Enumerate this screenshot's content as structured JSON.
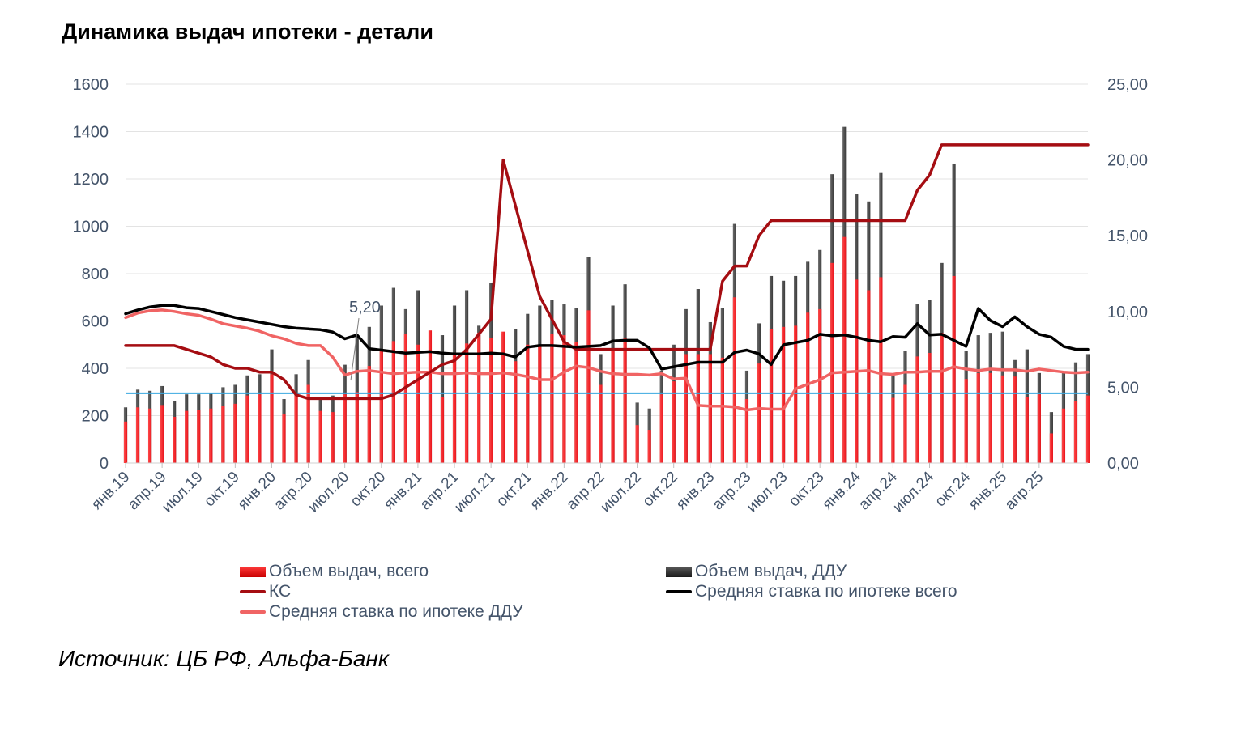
{
  "title": "Динамика выдач ипотеки - детали",
  "source": "Источник: ЦБ РФ, Альфа-Банк",
  "annotation": "5,20",
  "colors": {
    "total_bar": "#e8141c",
    "ddu_bar": "#3a3a3a",
    "ks": "#a50d12",
    "avg_total": "#000000",
    "avg_ddu": "#f06464",
    "ref_line": "#3aa8e0"
  },
  "legend": [
    {
      "key": "total",
      "label": "Объем выдач, всего",
      "kind": "bar",
      "color": "#e8141c"
    },
    {
      "key": "ddu",
      "label": "Объем выдач, ДДУ",
      "kind": "bar",
      "color": "#3a3a3a"
    },
    {
      "key": "ks",
      "label": "КС",
      "kind": "line",
      "color": "#a50d12"
    },
    {
      "key": "avg_total",
      "label": "Средняя ставка по ипотеке всего",
      "kind": "line",
      "color": "#000000"
    },
    {
      "key": "avg_ddu",
      "label": "Средняя ставка по ипотеке ДДУ",
      "kind": "line",
      "color": "#f06464"
    }
  ],
  "chart_data": {
    "type": "bar+line",
    "title": "Динамика выдач ипотеки - детали",
    "y_left": {
      "min": 0,
      "max": 1600,
      "ticks": [
        "0",
        "200",
        "400",
        "600",
        "800",
        "1000",
        "1200",
        "1400",
        "1600"
      ]
    },
    "y_right": {
      "min": 0,
      "max": 25,
      "ticks": [
        "0,00",
        "5,00",
        "10,00",
        "15,00",
        "20,00",
        "25,00"
      ]
    },
    "x_tick_labels": [
      "янв.19",
      "апр.19",
      "июл.19",
      "окт.19",
      "янв.20",
      "апр.20",
      "июл.20",
      "окт.20",
      "янв.21",
      "апр.21",
      "июл.21",
      "окт.21",
      "янв.22",
      "апр.22",
      "июл.22",
      "окт.22",
      "янв.23",
      "апр.23",
      "июл.23",
      "окт.23",
      "янв.24",
      "апр.24",
      "июл.24",
      "окт.24",
      "янв.25",
      "апр.25"
    ],
    "months": 80,
    "reference_line": {
      "value_right": 4.6
    },
    "series": [
      {
        "name": "Объем выдач, всего",
        "axis": "left",
        "values": [
          175,
          235,
          230,
          245,
          195,
          220,
          225,
          230,
          240,
          250,
          285,
          290,
          375,
          205,
          285,
          330,
          220,
          215,
          290,
          300,
          410,
          480,
          515,
          545,
          500,
          560,
          280,
          460,
          505,
          550,
          530,
          555,
          430,
          500,
          500,
          545,
          540,
          510,
          645,
          330,
          480,
          530,
          160,
          140,
          290,
          345,
          460,
          460,
          460,
          445,
          700,
          270,
          420,
          565,
          575,
          580,
          635,
          650,
          845,
          955,
          775,
          730,
          785,
          275,
          330,
          450,
          465,
          550,
          790,
          355,
          380,
          380,
          370,
          365,
          280,
          290,
          125,
          230,
          260,
          285
        ]
      },
      {
        "name": "Объем выдач, ДДУ",
        "axis": "left",
        "values": [
          235,
          310,
          305,
          325,
          260,
          290,
          290,
          295,
          320,
          330,
          370,
          375,
          480,
          270,
          375,
          435,
          280,
          285,
          415,
          535,
          575,
          665,
          740,
          650,
          730,
          355,
          540,
          665,
          730,
          580,
          760,
          545,
          565,
          630,
          665,
          690,
          670,
          655,
          870,
          460,
          665,
          755,
          255,
          230,
          390,
          500,
          650,
          735,
          595,
          655,
          1010,
          390,
          590,
          790,
          770,
          790,
          850,
          900,
          1220,
          1420,
          1135,
          1105,
          1225,
          370,
          475,
          670,
          690,
          845,
          1265,
          475,
          540,
          550,
          555,
          435,
          480,
          380,
          215,
          380,
          425,
          460
        ]
      },
      {
        "name": "КС",
        "axis": "right",
        "values": [
          7.75,
          7.75,
          7.75,
          7.75,
          7.75,
          7.5,
          7.25,
          7.0,
          6.5,
          6.25,
          6.25,
          6.0,
          6.0,
          5.5,
          4.5,
          4.25,
          4.25,
          4.25,
          4.25,
          4.25,
          4.25,
          4.25,
          4.5,
          5.0,
          5.5,
          6.0,
          6.5,
          6.75,
          7.5,
          8.5,
          9.5,
          20.0,
          17.0,
          14.0,
          11.0,
          9.5,
          8.0,
          7.5,
          7.5,
          7.5,
          7.5,
          7.5,
          7.5,
          7.5,
          7.5,
          7.5,
          7.5,
          7.5,
          7.5,
          12.0,
          13.0,
          13.0,
          15.0,
          16.0,
          16.0,
          16.0,
          16.0,
          16.0,
          16.0,
          16.0,
          16.0,
          16.0,
          16.0,
          16.0,
          16.0,
          18.0,
          19.0,
          21.0,
          21.0,
          21.0,
          21.0,
          21.0,
          21.0,
          21.0,
          21.0,
          21.0,
          21.0,
          21.0,
          21.0,
          21.0
        ]
      },
      {
        "name": "Средняя ставка по ипотеке всего",
        "axis": "right",
        "values": [
          9.85,
          10.1,
          10.3,
          10.4,
          10.4,
          10.25,
          10.2,
          10.0,
          9.8,
          9.6,
          9.45,
          9.3,
          9.15,
          9.0,
          8.9,
          8.85,
          8.8,
          8.65,
          8.2,
          8.45,
          7.55,
          7.45,
          7.35,
          7.25,
          7.3,
          7.35,
          7.25,
          7.2,
          7.2,
          7.2,
          7.25,
          7.2,
          7.0,
          7.65,
          7.75,
          7.75,
          7.7,
          7.65,
          7.7,
          7.75,
          8.05,
          8.1,
          8.1,
          7.6,
          6.2,
          6.35,
          6.5,
          6.65,
          6.65,
          6.65,
          7.3,
          7.45,
          7.2,
          6.5,
          7.8,
          7.95,
          8.1,
          8.5,
          8.4,
          8.45,
          8.3,
          8.1,
          8.0,
          8.35,
          8.3,
          9.2,
          8.45,
          8.5,
          8.1,
          7.7,
          10.2,
          9.4,
          9.0,
          9.65,
          9.0,
          8.5,
          8.3,
          7.7,
          7.5,
          7.5
        ]
      },
      {
        "name": "Средняя ставка по ипотеке ДДУ",
        "axis": "right",
        "values": [
          9.6,
          9.9,
          10.05,
          10.1,
          10.0,
          9.85,
          9.75,
          9.5,
          9.2,
          9.05,
          8.9,
          8.7,
          8.4,
          8.2,
          7.9,
          7.75,
          7.75,
          7.0,
          5.8,
          6.05,
          6.1,
          6.0,
          5.9,
          5.95,
          6.0,
          6.0,
          5.9,
          5.9,
          5.95,
          5.9,
          5.9,
          5.95,
          5.85,
          5.7,
          5.5,
          5.5,
          6.0,
          6.4,
          6.3,
          6.05,
          5.9,
          5.85,
          5.85,
          5.8,
          5.9,
          5.55,
          5.6,
          3.8,
          3.75,
          3.75,
          3.7,
          3.5,
          3.6,
          3.55,
          3.55,
          4.9,
          5.2,
          5.5,
          5.95,
          6.0,
          6.05,
          6.1,
          5.9,
          5.85,
          6.0,
          6.0,
          6.05,
          6.05,
          6.35,
          6.2,
          6.1,
          6.2,
          6.15,
          6.15,
          6.05,
          6.2,
          6.1,
          6.0,
          5.95,
          6.0
        ]
      }
    ]
  }
}
